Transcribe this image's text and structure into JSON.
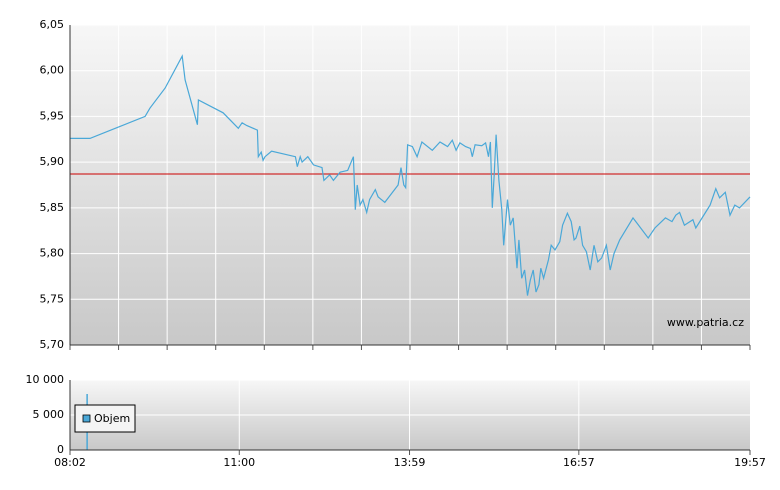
{
  "chart_data": [
    {
      "type": "line",
      "annotation": "www.patria.cz",
      "color": "#4aa8d8",
      "reference_line": 5.887,
      "reference_color": "#cc0000",
      "grid": true,
      "xlim": [
        482,
        1197
      ],
      "ylim": [
        5.7,
        6.05
      ],
      "yticks": [
        {
          "value": 5.7,
          "label": "5,70"
        },
        {
          "value": 5.75,
          "label": "5,75"
        },
        {
          "value": 5.8,
          "label": "5,80"
        },
        {
          "value": 5.85,
          "label": "5,85"
        },
        {
          "value": 5.9,
          "label": "5,90"
        },
        {
          "value": 5.95,
          "label": "5,95"
        },
        {
          "value": 6.0,
          "label": "6,00"
        },
        {
          "value": 6.05,
          "label": "6,05"
        }
      ],
      "x": [
        482,
        503,
        561,
        566,
        582,
        600,
        603,
        616,
        617,
        643,
        659,
        663,
        668,
        679,
        680,
        683,
        685,
        687,
        694,
        719,
        721,
        724,
        726,
        732,
        738,
        747,
        749,
        755,
        759,
        766,
        774,
        780,
        782,
        784,
        787,
        790,
        794,
        797,
        803,
        806,
        813,
        827,
        830,
        833,
        835,
        837,
        842,
        847,
        852,
        863,
        871,
        876,
        879,
        884,
        888,
        892,
        898,
        903,
        905,
        908,
        915,
        919,
        922,
        924,
        926,
        928,
        930,
        933,
        936,
        938,
        942,
        945,
        948,
        952,
        954,
        957,
        960,
        963,
        966,
        969,
        972,
        975,
        977,
        980,
        985,
        988,
        992,
        997,
        1000,
        1005,
        1009,
        1012,
        1014,
        1018,
        1021,
        1025,
        1029,
        1033,
        1037,
        1041,
        1046,
        1050,
        1054,
        1060,
        1074,
        1090,
        1097,
        1108,
        1115,
        1119,
        1123,
        1128,
        1137,
        1140,
        1155,
        1161,
        1165,
        1171,
        1176,
        1181,
        1186,
        1197
      ],
      "values": [
        5.926,
        5.926,
        5.95,
        5.959,
        5.981,
        6.016,
        5.99,
        5.941,
        5.968,
        5.954,
        5.937,
        5.943,
        5.94,
        5.935,
        5.906,
        5.911,
        5.902,
        5.906,
        5.912,
        5.906,
        5.895,
        5.906,
        5.9,
        5.906,
        5.897,
        5.894,
        5.88,
        5.886,
        5.88,
        5.889,
        5.891,
        5.906,
        5.848,
        5.875,
        5.853,
        5.859,
        5.845,
        5.859,
        5.87,
        5.862,
        5.856,
        5.875,
        5.894,
        5.875,
        5.872,
        5.919,
        5.917,
        5.906,
        5.922,
        5.913,
        5.922,
        5.919,
        5.917,
        5.924,
        5.913,
        5.921,
        5.917,
        5.915,
        5.906,
        5.919,
        5.918,
        5.921,
        5.906,
        5.922,
        5.85,
        5.886,
        5.93,
        5.88,
        5.848,
        5.809,
        5.859,
        5.831,
        5.839,
        5.784,
        5.815,
        5.773,
        5.782,
        5.754,
        5.771,
        5.782,
        5.758,
        5.766,
        5.784,
        5.773,
        5.793,
        5.809,
        5.804,
        5.813,
        5.831,
        5.844,
        5.835,
        5.815,
        5.817,
        5.83,
        5.809,
        5.802,
        5.782,
        5.809,
        5.791,
        5.795,
        5.809,
        5.782,
        5.8,
        5.815,
        5.839,
        5.817,
        5.828,
        5.839,
        5.835,
        5.842,
        5.845,
        5.831,
        5.837,
        5.828,
        5.853,
        5.871,
        5.861,
        5.867,
        5.842,
        5.853,
        5.85,
        5.862
      ]
    },
    {
      "type": "bar",
      "grid": true,
      "legend": "top-left",
      "xlim": [
        482,
        1197
      ],
      "ylim": [
        0,
        10000
      ],
      "xticks": [
        {
          "value": 482,
          "label": "08:02"
        },
        {
          "value": 660,
          "label": "11:00"
        },
        {
          "value": 839,
          "label": "13:59"
        },
        {
          "value": 1017,
          "label": "16:57"
        },
        {
          "value": 1197,
          "label": "19:57"
        }
      ],
      "yticks": [
        0,
        {
          "value": 5000,
          "label": "5 000"
        },
        {
          "value": 10000,
          "label": "10 000"
        }
      ],
      "series": [
        {
          "name": "Objem",
          "color": "#4aa8d8",
          "x": [
            500
          ],
          "values": [
            8000
          ]
        }
      ]
    }
  ]
}
